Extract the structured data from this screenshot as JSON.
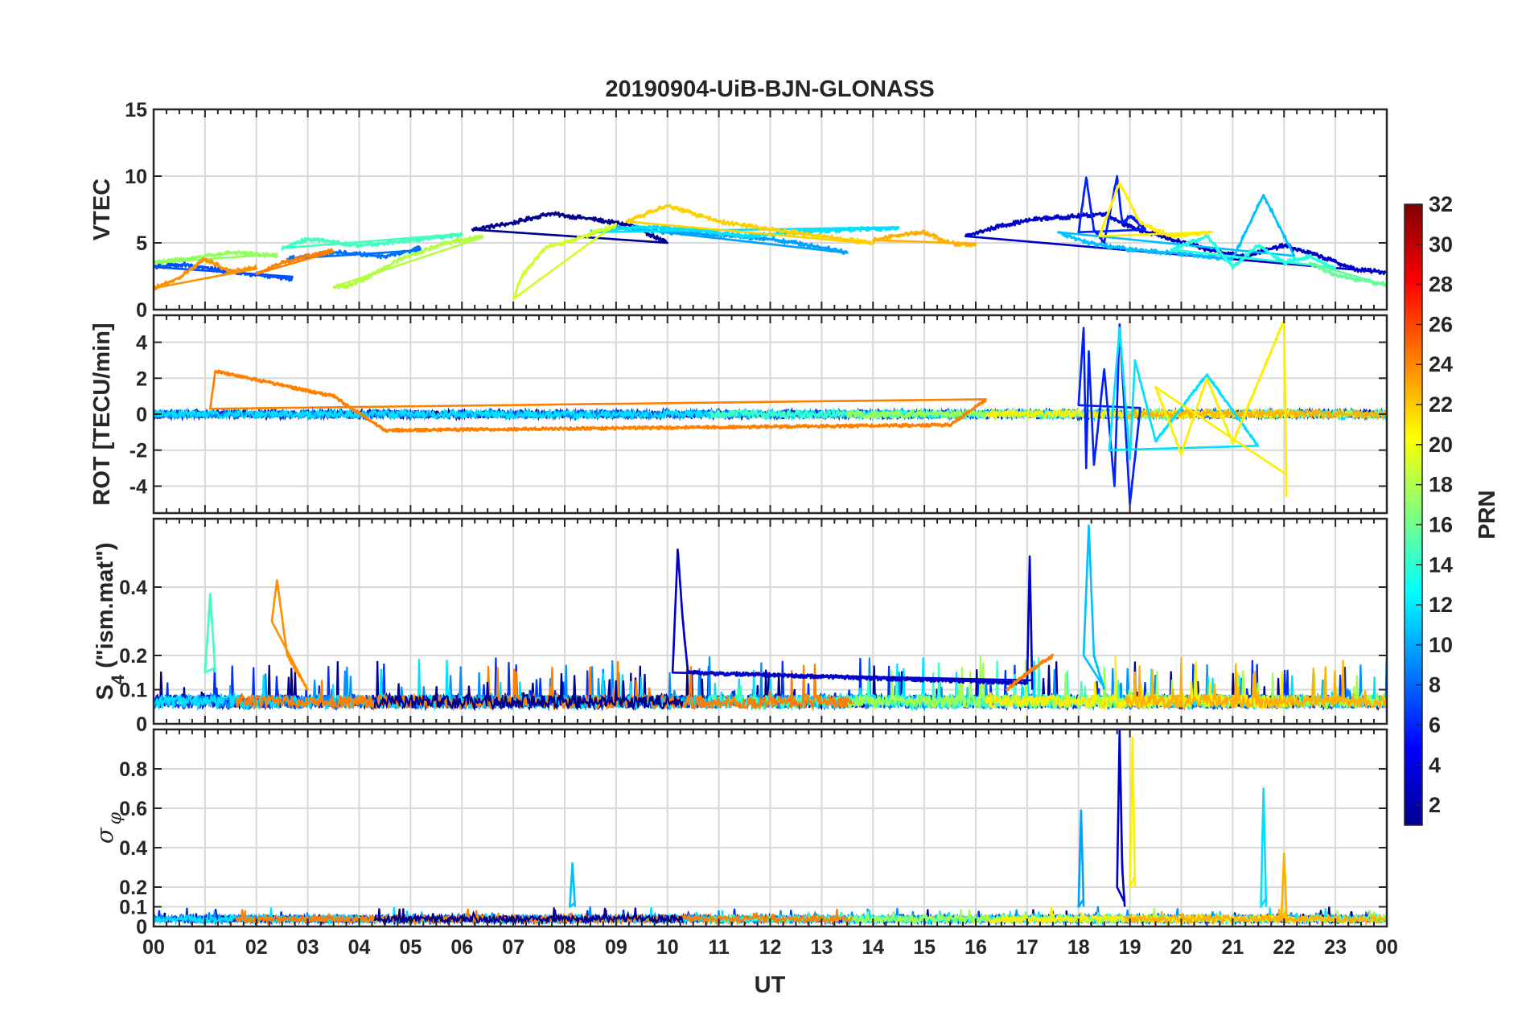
{
  "chart_data": {
    "type": "line",
    "title": "20190904-UiB-BJN-GLONASS",
    "xlabel": "UT",
    "xlim": [
      0,
      24
    ],
    "x_tick_values": [
      0,
      1,
      2,
      3,
      4,
      5,
      6,
      7,
      8,
      9,
      10,
      11,
      12,
      13,
      14,
      15,
      16,
      17,
      18,
      19,
      20,
      21,
      22,
      23,
      24
    ],
    "x_tick_labels": [
      "00",
      "01",
      "02",
      "03",
      "04",
      "05",
      "06",
      "07",
      "08",
      "09",
      "10",
      "11",
      "12",
      "13",
      "14",
      "15",
      "16",
      "17",
      "18",
      "19",
      "20",
      "21",
      "22",
      "23",
      "00"
    ],
    "grid": true,
    "colormap": "jet",
    "colorbar": {
      "label": "PRN",
      "range": [
        1,
        32
      ],
      "ticks": [
        2,
        4,
        6,
        8,
        10,
        12,
        14,
        16,
        18,
        20,
        22,
        24,
        26,
        28,
        30,
        32
      ],
      "tick_labels": [
        "2",
        "4",
        "6",
        "8",
        "10",
        "12",
        "14",
        "16",
        "18",
        "20",
        "22",
        "24",
        "26",
        "28",
        "30",
        "32"
      ],
      "colors": [
        "#00008f",
        "#0000ff",
        "#007fff",
        "#00ffff",
        "#7fff7f",
        "#ffff00",
        "#ff7f00",
        "#ff0000",
        "#7f0000"
      ],
      "placement": "right"
    },
    "panels": [
      {
        "id": "vtec",
        "ylabel": "VTEC",
        "ylim": [
          0,
          15
        ],
        "y_ticks": [
          0,
          5,
          10,
          15
        ],
        "y_tick_labels": [
          "0",
          "5",
          "10",
          "15"
        ],
        "series": [
          {
            "prn": 1,
            "color": "#00008f",
            "x": [
              6.2,
              7.0,
              7.7,
              8.5,
              9.3,
              10.0
            ],
            "y": [
              6.0,
              6.5,
              7.2,
              6.8,
              6.3,
              5.0
            ]
          },
          {
            "prn": 2,
            "color": "#0000c8",
            "x": [
              15.8,
              16.5,
              17.2,
              18.0,
              18.5,
              19.0,
              19.6,
              20.5,
              21.2,
              22.0,
              22.7,
              23.4,
              24.0
            ],
            "y": [
              5.5,
              6.3,
              6.8,
              7.0,
              7.2,
              6.2,
              5.5,
              4.5,
              4.0,
              4.8,
              4.0,
              3.0,
              2.8
            ]
          },
          {
            "prn": 3,
            "color": "#0020ff",
            "x": [
              18.0,
              18.15,
              18.3,
              18.5,
              18.75,
              18.85,
              19.0,
              19.3
            ],
            "y": [
              5.8,
              9.9,
              6.0,
              5.0,
              10.0,
              6.5,
              7.0,
              6.0
            ]
          },
          {
            "prn": 5,
            "color": "#0050ff",
            "x": [
              0.0,
              0.6,
              1.2,
              2.0,
              2.7
            ],
            "y": [
              3.2,
              3.4,
              3.0,
              2.6,
              2.3
            ]
          },
          {
            "prn": 6,
            "color": "#0070ff",
            "x": [
              2.6,
              3.5,
              4.5,
              5.2
            ],
            "y": [
              3.8,
              4.3,
              4.0,
              4.6
            ]
          },
          {
            "prn": 8,
            "color": "#00a0ff",
            "x": [
              9.0,
              10.0,
              11.0,
              12.0,
              12.8,
              13.5
            ],
            "y": [
              6.2,
              5.8,
              5.6,
              5.3,
              4.8,
              4.3
            ]
          },
          {
            "prn": 9,
            "color": "#00c0ff",
            "x": [
              17.6,
              18.2,
              19.0,
              20.0,
              21.0,
              21.6,
              22.2
            ],
            "y": [
              5.8,
              5.0,
              4.5,
              4.2,
              3.8,
              8.6,
              4.0
            ]
          },
          {
            "prn": 10,
            "color": "#00e0ff",
            "x": [
              8.5,
              9.5,
              10.5,
              11.5,
              12.5,
              13.5,
              14.5
            ],
            "y": [
              5.8,
              6.2,
              6.0,
              5.5,
              5.8,
              6.0,
              6.1
            ]
          },
          {
            "prn": 12,
            "color": "#20ffe0",
            "x": [
              19.8,
              20.5,
              21.0,
              21.5,
              22.0,
              22.5,
              23.0
            ],
            "y": [
              4.5,
              5.5,
              3.2,
              4.8,
              3.5,
              4.0,
              3.0
            ]
          },
          {
            "prn": 13,
            "color": "#40ffc0",
            "x": [
              2.5,
              3.0,
              4.0,
              5.0,
              6.0
            ],
            "y": [
              4.6,
              5.3,
              4.8,
              5.2,
              5.6
            ]
          },
          {
            "prn": 15,
            "color": "#60ff98",
            "x": [
              22.5,
              23.0,
              23.5,
              24.0
            ],
            "y": [
              3.5,
              2.6,
              2.2,
              1.9
            ]
          },
          {
            "prn": 16,
            "color": "#90ff60",
            "x": [
              0.0,
              0.8,
              1.6,
              2.4
            ],
            "y": [
              3.5,
              3.9,
              4.3,
              4.0
            ]
          },
          {
            "prn": 17,
            "color": "#b0ff40",
            "x": [
              3.5,
              3.8,
              4.2,
              4.8,
              5.6,
              6.4
            ],
            "y": [
              1.7,
              1.8,
              2.5,
              3.8,
              4.9,
              5.5
            ]
          },
          {
            "prn": 18,
            "color": "#d0ff20",
            "x": [
              7.0,
              7.15,
              7.6,
              8.3,
              9.0
            ],
            "y": [
              0.8,
              2.4,
              4.6,
              5.4,
              6.3
            ]
          },
          {
            "prn": 19,
            "color": "#ffee00",
            "x": [
              18.4,
              18.8,
              19.2,
              19.8,
              20.6
            ],
            "y": [
              5.5,
              9.5,
              6.5,
              5.5,
              5.8
            ]
          },
          {
            "prn": 20,
            "color": "#ffd000",
            "x": [
              9.2,
              10.0,
              11.0,
              12.0,
              13.0,
              14.0
            ],
            "y": [
              6.6,
              7.8,
              6.6,
              6.0,
              5.5,
              5.0
            ]
          },
          {
            "prn": 21,
            "color": "#ffb000",
            "x": [
              14.0,
              14.5,
              15.0,
              15.5,
              16.0
            ],
            "y": [
              5.2,
              5.6,
              5.8,
              5.0,
              4.8
            ]
          },
          {
            "prn": 22,
            "color": "#ff9000",
            "x": [
              0.0,
              0.5,
              1.0,
              1.5,
              2.0
            ],
            "y": [
              1.6,
              2.4,
              3.8,
              2.8,
              3.2
            ]
          },
          {
            "prn": 23,
            "color": "#ff7f00",
            "x": [
              2.0,
              2.5,
              3.0,
              3.5
            ],
            "y": [
              2.7,
              3.5,
              4.0,
              4.4
            ]
          }
        ]
      },
      {
        "id": "rot",
        "ylabel": "ROT [TECU/min]",
        "ylim": [
          -5.5,
          5.5
        ],
        "y_ticks": [
          -4,
          -2,
          0,
          2,
          4
        ],
        "y_tick_labels": [
          "-4",
          "-2",
          "0",
          "2",
          "4"
        ],
        "series": [
          {
            "prn": 3,
            "color": "#0020ff",
            "x": [
              18.0,
              18.1,
              18.15,
              18.2,
              18.3,
              18.5,
              18.7,
              18.8,
              19.0,
              19.2
            ],
            "y": [
              0.5,
              4.8,
              -3.0,
              3.5,
              -2.8,
              2.5,
              -4.0,
              5.0,
              -5.0,
              0.3
            ]
          },
          {
            "prn": 12,
            "color": "#00e0ff",
            "x": [
              18.6,
              18.8,
              19.0,
              19.1,
              19.5,
              20.5,
              21.5
            ],
            "y": [
              -2.0,
              4.8,
              -2.5,
              3.0,
              -1.5,
              2.2,
              -1.8
            ]
          },
          {
            "prn": 19,
            "color": "#ffee00",
            "x": [
              19.5,
              20.0,
              20.5,
              21.0,
              21.6,
              22.0,
              22.05
            ],
            "y": [
              1.5,
              -2.2,
              2.0,
              -1.6,
              2.5,
              5.2,
              -4.6
            ]
          },
          {
            "prn": 23,
            "color": "#ff7f00",
            "x": [
              1.1,
              1.2,
              3.5,
              4.5,
              15.5,
              16.2
            ],
            "y": [
              0.3,
              2.4,
              1.0,
              -0.9,
              -0.6,
              0.8
            ]
          }
        ]
      },
      {
        "id": "s4",
        "ylabel": "S4 (\"ism.mat\")",
        "ylim": [
          0,
          0.6
        ],
        "y_ticks": [
          0,
          0.1,
          0.2,
          0.4
        ],
        "y_tick_labels": [
          "0",
          "0.1",
          "0.2",
          "0.4"
        ],
        "series": [
          {
            "prn": 2,
            "color": "#0000c8",
            "x": [
              10.1,
              10.2,
              10.3,
              10.4,
              17.0,
              17.05,
              17.1
            ],
            "y": [
              0.15,
              0.51,
              0.3,
              0.15,
              0.12,
              0.49,
              0.1
            ]
          },
          {
            "prn": 9,
            "color": "#00c0ff",
            "x": [
              18.1,
              18.2,
              18.3,
              18.5
            ],
            "y": [
              0.2,
              0.58,
              0.2,
              0.1
            ]
          },
          {
            "prn": 13,
            "color": "#40ffc0",
            "x": [
              1.0,
              1.1,
              1.2
            ],
            "y": [
              0.15,
              0.38,
              0.15
            ]
          },
          {
            "prn": 22,
            "color": "#ff9000",
            "x": [
              2.3,
              2.4,
              2.6,
              3.0
            ],
            "y": [
              0.3,
              0.42,
              0.2,
              0.1
            ]
          },
          {
            "prn": 23,
            "color": "#ff7f00",
            "x": [
              16.6,
              17.0,
              17.5
            ],
            "y": [
              0.1,
              0.15,
              0.2
            ]
          }
        ]
      },
      {
        "id": "sigma_phi",
        "ylabel": "σφ",
        "ylim": [
          0,
          1.0
        ],
        "y_ticks": [
          0,
          0.1,
          0.2,
          0.4,
          0.6,
          0.8
        ],
        "y_tick_labels": [
          "0",
          "0.1",
          "0.2",
          "0.4",
          "0.6",
          "0.8"
        ],
        "series": [
          {
            "prn": 2,
            "color": "#0000c8",
            "x": [
              18.75,
              18.8,
              18.85,
              18.9
            ],
            "y": [
              0.2,
              1.0,
              0.3,
              0.1
            ]
          },
          {
            "prn": 8,
            "color": "#00a0ff",
            "x": [
              18.0,
              18.05,
              18.1
            ],
            "y": [
              0.1,
              0.59,
              0.1
            ]
          },
          {
            "prn": 9,
            "color": "#00c0ff",
            "x": [
              8.1,
              8.15,
              8.2
            ],
            "y": [
              0.1,
              0.32,
              0.1
            ]
          },
          {
            "prn": 12,
            "color": "#00e0ff",
            "x": [
              21.55,
              21.6,
              21.65
            ],
            "y": [
              0.1,
              0.7,
              0.1
            ]
          },
          {
            "prn": 19,
            "color": "#ffee00",
            "x": [
              19.0,
              19.05,
              19.1
            ],
            "y": [
              0.2,
              0.96,
              0.2
            ]
          },
          {
            "prn": 21,
            "color": "#ffb000",
            "x": [
              21.95,
              22.0,
              22.05
            ],
            "y": [
              0.05,
              0.37,
              0.05
            ]
          }
        ]
      }
    ]
  }
}
